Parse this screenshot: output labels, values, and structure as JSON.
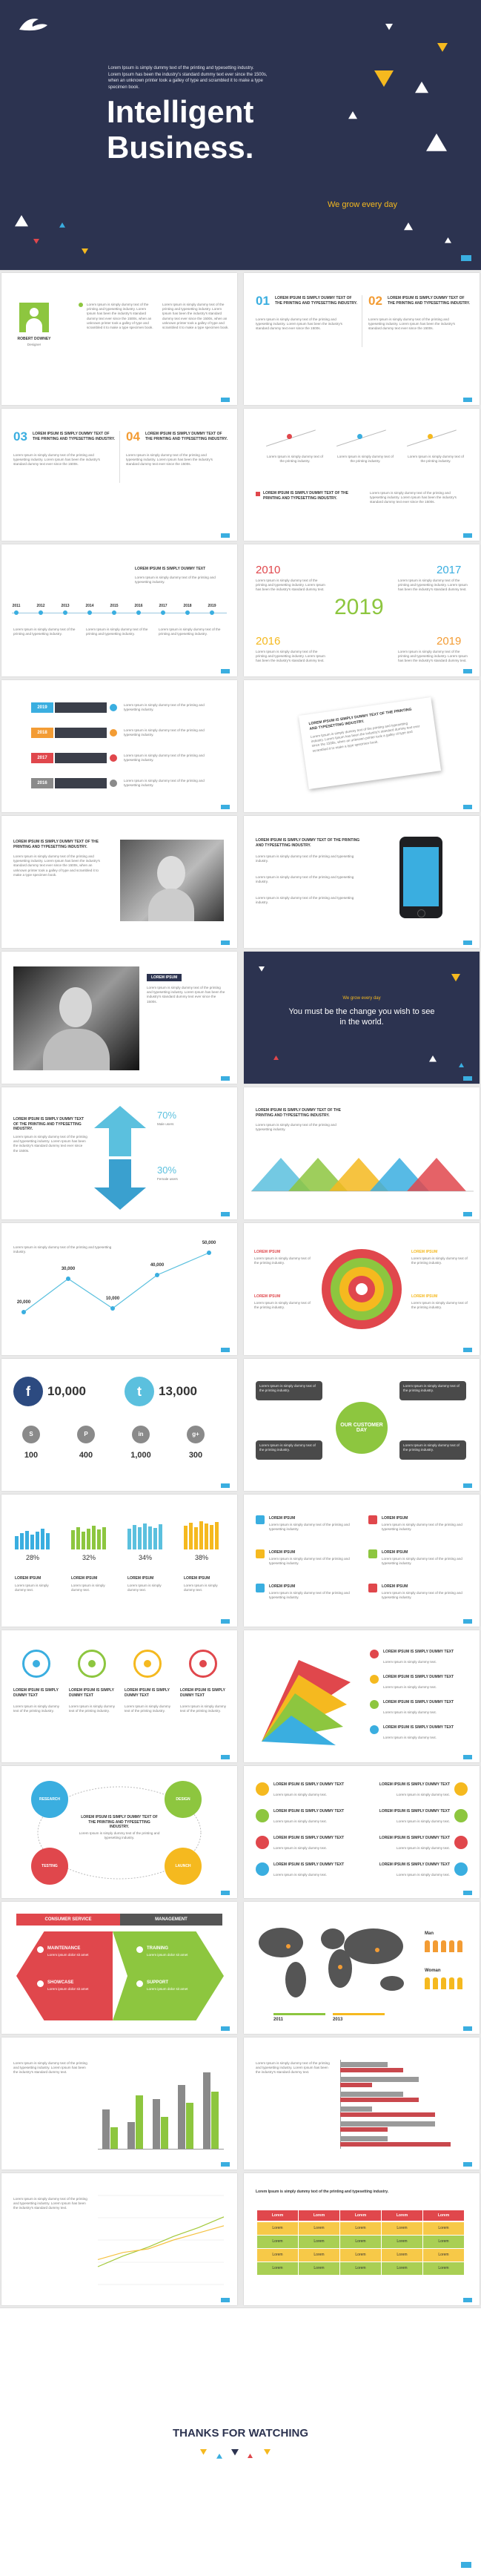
{
  "cover": {
    "intro": "Lorem Ipsum is simply dummy text of the printing and typesetting industry. Lorem Ipsum has been the industry's standard dummy text ever since the 1500s, when an unknown printer took a galley of type and scrambled it to make a type specimen book.",
    "title": [
      "Intelligent",
      "Business."
    ],
    "tagline": "We grow every day"
  },
  "slides": [
    {
      "kind": "profile",
      "name": "ROBERT DOWNEY",
      "role": "Designer",
      "body": [
        "Lorem Ipsum is simply dummy text of the printing and typesetting industry. Lorem Ipsum has been the industry's standard dummy text ever since the 1500s, when an unknown printer took a galley of type and scrambled it to make a type specimen book.",
        "Lorem Ipsum is simply dummy text of the printing and typesetting industry. Lorem Ipsum has been the industry's standard dummy text ever since the 1500s, when an unknown printer took a galley of type and scrambled it to make a type specimen book."
      ]
    },
    {
      "kind": "numbered",
      "items": [
        {
          "num": "01",
          "title": "LOREM IPSUM IS SIMPLY DUMMY TEXT OF THE PRINTING AND TYPESETTING INDUSTRY.",
          "body": "Lorem Ipsum is simply dummy text of the printing and typesetting industry. Lorem Ipsum has been the industry's standard dummy text ever since the 1500s."
        },
        {
          "num": "02",
          "title": "LOREM IPSUM IS SIMPLY DUMMY TEXT OF THE PRINTING AND TYPESETTING INDUSTRY.",
          "body": "Lorem Ipsum is simply dummy text of the printing and typesetting industry. Lorem Ipsum has been the industry's standard dummy text ever since the 1500s."
        }
      ]
    },
    {
      "kind": "numbered",
      "items": [
        {
          "num": "03",
          "title": "LOREM IPSUM IS SIMPLY DUMMY TEXT OF THE PRINTING AND TYPESETTING INDUSTRY.",
          "body": "Lorem Ipsum is simply dummy text of the printing and typesetting industry. Lorem Ipsum has been the industry's standard dummy text ever since the 1500s."
        },
        {
          "num": "04",
          "title": "LOREM IPSUM IS SIMPLY DUMMY TEXT OF THE PRINTING AND TYPESETTING INDUSTRY.",
          "body": "Lorem Ipsum is simply dummy text of the printing and typesetting industry. Lorem Ipsum has been the industry's standard dummy text ever since the 1500s."
        }
      ]
    },
    {
      "kind": "pins",
      "items": [
        "Lorem Ipsum is simply dummy text of the printing industry.",
        "Lorem Ipsum is simply dummy text of the printing industry.",
        "Lorem Ipsum is simply dummy text of the printing industry."
      ],
      "heading": "LOREM IPSUM IS SIMPLY DUMMY TEXT OF THE PRINTING AND TYPESETTING INDUSTRY.",
      "body": "Lorem Ipsum is simply dummy text of the printing and typesetting industry. Lorem Ipsum has been the industry's standard dummy text ever since the 1500s."
    },
    {
      "kind": "timeline",
      "years": [
        "2011",
        "2012",
        "2013",
        "2014",
        "2015",
        "2016",
        "2017",
        "2018",
        "2019"
      ],
      "heading": "LOREM IPSUM IS SIMPLY DUMMY TEXT",
      "body": "Lorem Ipsum is simply dummy text of the printing and typesetting industry.",
      "items": [
        "Lorem Ipsum is simply dummy text of the printing and typesetting industry.",
        "Lorem Ipsum is simply dummy text of the printing and typesetting industry.",
        "Lorem Ipsum is simply dummy text of the printing and typesetting industry."
      ]
    },
    {
      "kind": "years",
      "top_left": "2010",
      "top_right": "2017",
      "bottom_left": "2016",
      "bottom_right": "2019",
      "center": "2019",
      "body": [
        "Lorem Ipsum is simply dummy text of the printing and typesetting industry. Lorem Ipsum has been the industry's standard dummy text.",
        "Lorem Ipsum is simply dummy text of the printing and typesetting industry. Lorem Ipsum has been the industry's standard dummy text.",
        "Lorem Ipsum is simply dummy text of the printing and typesetting industry. Lorem Ipsum has been the industry's standard dummy text.",
        "Lorem Ipsum is simply dummy text of the printing and typesetting industry. Lorem Ipsum has been the industry's standard dummy text."
      ]
    },
    {
      "kind": "yearbars",
      "items": [
        {
          "year": "2019",
          "text": "Lorem Ipsum is simply dummy text of the printing and typesetting industry."
        },
        {
          "year": "2018",
          "text": "Lorem Ipsum is simply dummy text of the printing and typesetting industry."
        },
        {
          "year": "2017",
          "text": "Lorem Ipsum is simply dummy text of the printing and typesetting industry."
        },
        {
          "year": "2016",
          "text": "Lorem Ipsum is simply dummy text of the printing and typesetting industry."
        }
      ]
    },
    {
      "kind": "quote",
      "heading": "LOREM IPSUM IS SIMPLY DUMMY TEXT OF THE PRINTING AND TYPESETTING INDUSTRY.",
      "body": "Lorem Ipsum is simply dummy text of the printing and typesetting industry. Lorem Ipsum has been the industry's standard dummy text ever since the 1500s, when an unknown printer took a galley of type and scrambled it to make a type specimen book."
    },
    {
      "kind": "phototext",
      "heading": "LOREM IPSUM IS SIMPLY DUMMY TEXT OF THE PRINTING AND TYPESETTING INDUSTRY.",
      "body": "Lorem Ipsum is simply dummy text of the printing and typesetting industry. Lorem Ipsum has been the industry's standard dummy text ever since the 1500s, when an unknown printer took a galley of type and scrambled it to make a type specimen book."
    },
    {
      "kind": "phone",
      "heading": "LOREM IPSUM IS SIMPLY DUMMY TEXT OF THE PRINTING AND TYPESETTING INDUSTRY.",
      "body": [
        "Lorem Ipsum is simply dummy text of the printing and typesetting industry.",
        "Lorem Ipsum is simply dummy text of the printing and typesetting industry.",
        "Lorem Ipsum is simply dummy text of the printing and typesetting industry."
      ]
    },
    {
      "kind": "photobig",
      "tag": "LOREM IPSUM",
      "body": "Lorem Ipsum is simply dummy text of the printing and typesetting industry. Lorem Ipsum has been the industry's standard dummy text ever since the 1500s."
    },
    {
      "kind": "dark",
      "tagline": "We grow every day",
      "quote": "You must be the change you wish to see in the world."
    },
    {
      "kind": "gender",
      "heading": "LOREM IPSUM IS SIMPLY DUMMY TEXT OF THE PRINTING AND TYPESETTING INDUSTRY.",
      "body": "Lorem Ipsum is simply dummy text of the printing and typesetting industry. Lorem Ipsum has been the industry's standard dummy text ever since the 1500s.",
      "male": "70%",
      "male_label": "Male users",
      "female": "30%",
      "female_label": "Female users"
    },
    {
      "kind": "triangles",
      "heading": "LOREM IPSUM IS SIMPLY DUMMY TEXT OF THE PRINTING AND TYPESETTING INDUSTRY.",
      "body": "Lorem Ipsum is simply dummy text of the printing and typesetting industry."
    },
    {
      "kind": "zigzag",
      "labels": [
        "20,000",
        "30,000",
        "10,000",
        "40,000",
        "50,000"
      ],
      "body": "Lorem Ipsum is simply dummy text of the printing and typesetting industry."
    },
    {
      "kind": "target",
      "items": [
        {
          "title": "LOREM IPSUM",
          "body": "Lorem Ipsum is simply dummy text of the printing industry."
        },
        {
          "title": "LOREM IPSUM",
          "body": "Lorem Ipsum is simply dummy text of the printing industry."
        },
        {
          "title": "LOREM IPSUM",
          "body": "Lorem Ipsum is simply dummy text of the printing industry."
        },
        {
          "title": "LOREM IPSUM",
          "body": "Lorem Ipsum is simply dummy text of the printing industry."
        }
      ]
    },
    {
      "kind": "social",
      "big": [
        {
          "icon": "f",
          "value": "10,000"
        },
        {
          "icon": "t",
          "value": "13,000"
        }
      ],
      "small": [
        {
          "icon": "S",
          "value": "100"
        },
        {
          "icon": "P",
          "value": "400"
        },
        {
          "icon": "in",
          "value": "1,000"
        },
        {
          "icon": "g+",
          "value": "300"
        }
      ]
    },
    {
      "kind": "chat",
      "center": "OUR CUSTOMER DAY",
      "bubbles": [
        "Lorem Ipsum is simply dummy text of the printing industry.",
        "Lorem Ipsum is simply dummy text of the printing industry.",
        "Lorem Ipsum is simply dummy text of the printing industry.",
        "Lorem Ipsum is simply dummy text of the printing industry."
      ]
    },
    {
      "kind": "percentbars",
      "labels": [
        "28%",
        "32%",
        "34%",
        "38%"
      ],
      "titles": [
        "LOREM IPSUM",
        "LOREM IPSUM",
        "LOREM IPSUM",
        "LOREM IPSUM"
      ],
      "body": [
        "Lorem Ipsum is simply dummy text.",
        "Lorem Ipsum is simply dummy text.",
        "Lorem Ipsum is simply dummy text.",
        "Lorem Ipsum is simply dummy text."
      ]
    },
    {
      "kind": "iconlist",
      "items": [
        {
          "title": "LOREM IPSUM",
          "body": "Lorem Ipsum is simply dummy text of the printing and typesetting industry."
        },
        {
          "title": "LOREM IPSUM",
          "body": "Lorem Ipsum is simply dummy text of the printing and typesetting industry."
        },
        {
          "title": "LOREM IPSUM",
          "body": "Lorem Ipsum is simply dummy text of the printing and typesetting industry."
        },
        {
          "title": "LOREM IPSUM",
          "body": "Lorem Ipsum is simply dummy text of the printing and typesetting industry."
        },
        {
          "title": "LOREM IPSUM",
          "body": "Lorem Ipsum is simply dummy text of the printing and typesetting industry."
        },
        {
          "title": "LOREM IPSUM",
          "body": "Lorem Ipsum is simply dummy text of the printing and typesetting industry."
        }
      ]
    },
    {
      "kind": "circles4",
      "items": [
        {
          "title": "LOREM IPSUM IS SIMPLY DUMMY TEXT",
          "body": "Lorem Ipsum is simply dummy text of the printing industry."
        },
        {
          "title": "LOREM IPSUM IS SIMPLY DUMMY TEXT",
          "body": "Lorem Ipsum is simply dummy text of the printing industry."
        },
        {
          "title": "LOREM IPSUM IS SIMPLY DUMMY TEXT",
          "body": "Lorem Ipsum is simply dummy text of the printing industry."
        },
        {
          "title": "LOREM IPSUM IS SIMPLY DUMMY TEXT",
          "body": "Lorem Ipsum is simply dummy text of the printing industry."
        }
      ]
    },
    {
      "kind": "fan",
      "items": [
        {
          "title": "LOREM IPSUM IS SIMPLY DUMMY TEXT",
          "body": "Lorem Ipsum is simply dummy text."
        },
        {
          "title": "LOREM IPSUM IS SIMPLY DUMMY TEXT",
          "body": "Lorem Ipsum is simply dummy text."
        },
        {
          "title": "LOREM IPSUM IS SIMPLY DUMMY TEXT",
          "body": "Lorem Ipsum is simply dummy text."
        },
        {
          "title": "LOREM IPSUM IS SIMPLY DUMMY TEXT",
          "body": "Lorem Ipsum is simply dummy text."
        }
      ]
    },
    {
      "kind": "cycle",
      "center_title": "LOREM IPSUM IS SIMPLY DUMMY TEXT OF THE PRINTING AND TYPESETTING INDUSTRY.",
      "center_body": "Lorem Ipsum is simply dummy text of the printing and typesetting industry.",
      "labels": [
        "RESEARCH",
        "DESIGN",
        "TESTING",
        "LAUNCH"
      ]
    },
    {
      "kind": "iconlist8",
      "items": [
        {
          "title": "LOREM IPSUM IS SIMPLY DUMMY TEXT",
          "body": "Lorem Ipsum is simply dummy text."
        },
        {
          "title": "LOREM IPSUM IS SIMPLY DUMMY TEXT",
          "body": "Lorem Ipsum is simply dummy text."
        },
        {
          "title": "LOREM IPSUM IS SIMPLY DUMMY TEXT",
          "body": "Lorem Ipsum is simply dummy text."
        },
        {
          "title": "LOREM IPSUM IS SIMPLY DUMMY TEXT",
          "body": "Lorem Ipsum is simply dummy text."
        },
        {
          "title": "LOREM IPSUM IS SIMPLY DUMMY TEXT",
          "body": "Lorem Ipsum is simply dummy text."
        },
        {
          "title": "LOREM IPSUM IS SIMPLY DUMMY TEXT",
          "body": "Lorem Ipsum is simply dummy text."
        },
        {
          "title": "LOREM IPSUM IS SIMPLY DUMMY TEXT",
          "body": "Lorem Ipsum is simply dummy text."
        },
        {
          "title": "LOREM IPSUM IS SIMPLY DUMMY TEXT",
          "body": "Lorem Ipsum is simply dummy text."
        }
      ]
    },
    {
      "kind": "hexagon",
      "head_left": "CONSUMER SERVICE",
      "head_right": "MANAGEMENT",
      "left": [
        {
          "title": "MAINTENANCE",
          "body": "Lorem ipsum dolor sit amet"
        },
        {
          "title": "SHOWCASE",
          "body": "Lorem ipsum dolor sit amet"
        }
      ],
      "right": [
        {
          "title": "TRAINING",
          "body": "Lorem ipsum dolor sit amet"
        },
        {
          "title": "SUPPORT",
          "body": "Lorem ipsum dolor sit amet"
        }
      ]
    },
    {
      "kind": "map",
      "years": [
        "2011",
        "2013"
      ],
      "people": [
        "Man",
        "Woman"
      ]
    },
    {
      "kind": "columns",
      "body": "Lorem Ipsum is simply dummy text of the printing and typesetting industry. Lorem Ipsum has been the industry's standard dummy text.",
      "chart": {
        "ylim": [
          0,
          5
        ],
        "series": [
          {
            "color": "#8a8a8a",
            "values": [
              2.2,
              1.5,
              2.8,
              3.6,
              4.3
            ]
          },
          {
            "color": "#8dc63f",
            "values": [
              1.2,
              3.0,
              1.8,
              2.6,
              3.2
            ]
          }
        ]
      }
    },
    {
      "kind": "hbars",
      "body": "Lorem Ipsum is simply dummy text of the printing and typesetting industry. Lorem Ipsum has been the industry's standard dummy text.",
      "chart": {
        "xlim": [
          0,
          8
        ],
        "series": [
          {
            "color": "#9a9a9a",
            "values": [
              3,
              5,
              4,
              2,
              6,
              3
            ]
          },
          {
            "color": "#c9484d",
            "values": [
              4,
              2,
              5,
              6,
              3,
              7
            ]
          }
        ]
      }
    },
    {
      "kind": "lines",
      "body": "Lorem Ipsum is simply dummy text of the printing and typesetting industry. Lorem Ipsum has been the industry's standard dummy text.",
      "chart": {
        "ylim": [
          0,
          5
        ],
        "series": [
          {
            "color": "#a3c93a",
            "values": [
              1.0,
              1.6,
              2.1,
              2.7,
              3.2,
              3.8
            ]
          },
          {
            "color": "#f5c242",
            "values": [
              1.4,
              1.8,
              2.0,
              2.5,
              2.9,
              3.3
            ]
          }
        ]
      }
    },
    {
      "kind": "table",
      "heading": "Lorem Ipsum is simply dummy text of the printing and typesetting industry.",
      "header": [
        "Lorem",
        "Lorem",
        "Lorem",
        "Lorem",
        "Lorem"
      ],
      "rows": [
        [
          "Lorem",
          "Lorem",
          "Lorem",
          "Lorem",
          "Lorem"
        ],
        [
          "Lorem",
          "Lorem",
          "Lorem",
          "Lorem",
          "Lorem"
        ],
        [
          "Lorem",
          "Lorem",
          "Lorem",
          "Lorem",
          "Lorem"
        ],
        [
          "Lorem",
          "Lorem",
          "Lorem",
          "Lorem",
          "Lorem"
        ]
      ]
    }
  ],
  "closing": {
    "title": "THANKS FOR WATCHING"
  }
}
